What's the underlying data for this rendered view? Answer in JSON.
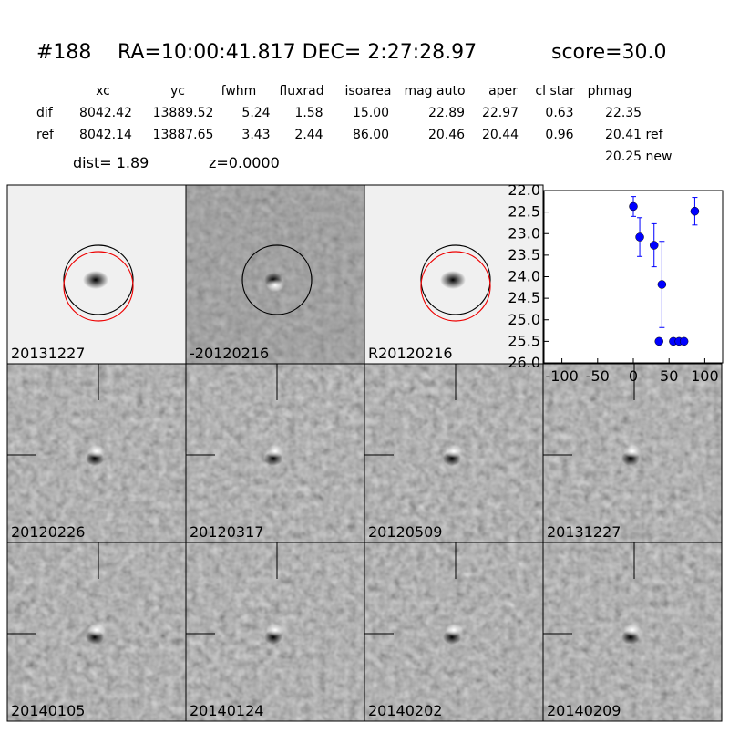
{
  "header": {
    "id": "#188",
    "coords": "RA=10:00:41.817 DEC= 2:27:28.97",
    "score": "score=30.0"
  },
  "table": {
    "columns": [
      "xc",
      "yc",
      "fwhm",
      "fluxrad",
      "isoarea",
      "mag auto",
      "aper",
      "cl star",
      "phmag"
    ],
    "rows": [
      [
        "dif",
        "8042.42",
        "13889.52",
        "5.24",
        "1.58",
        "15.00",
        "22.89",
        "22.97",
        "0.63",
        "22.35"
      ],
      [
        "ref",
        "8042.14",
        "13887.65",
        "3.43",
        "2.44",
        "86.00",
        "20.46",
        "20.44",
        "0.96",
        "20.41 ref"
      ]
    ],
    "extra": "20.25 new"
  },
  "info": {
    "dist": "dist=  1.89",
    "z": "z=0.0000"
  },
  "stamps": [
    {
      "label": "20131227",
      "color": "#000000"
    },
    {
      "label": "-20120216",
      "color": "#000000"
    },
    {
      "label": "R20120216",
      "color": "#000000"
    },
    {
      "label": "20120226",
      "color": "#000000"
    },
    {
      "label": "20120317",
      "color": "#000000"
    },
    {
      "label": "20120509",
      "color": "#000000"
    },
    {
      "label": "20131227",
      "color": "#ff0000"
    },
    {
      "label": "20140105",
      "color": "#000000"
    },
    {
      "label": "20140124",
      "color": "#000000"
    },
    {
      "label": "20140202",
      "color": "#000000"
    },
    {
      "label": "20140209",
      "color": "#000000"
    }
  ],
  "chart_data": {
    "type": "scatter",
    "x": [
      0,
      9,
      29,
      36,
      40,
      56,
      64,
      71,
      86
    ],
    "series": [
      {
        "color": "#0000ff",
        "values": [
          22.37,
          23.08,
          23.27,
          25.5,
          24.18,
          25.5,
          25.5,
          25.5,
          22.48
        ],
        "errors": [
          0.23,
          0.45,
          0.5,
          null,
          1.0,
          null,
          null,
          null,
          0.32
        ]
      }
    ],
    "xlim": [
      -125,
      125
    ],
    "ylim": [
      22,
      26
    ],
    "y_inverted": true,
    "xticks": [
      -100,
      -50,
      0,
      50,
      100
    ],
    "yticks": [
      {
        "value": 22,
        "label": "22.0"
      },
      22.5,
      {
        "value": 23,
        "label": "23.0"
      },
      23.5,
      {
        "value": 24,
        "label": "24.0"
      },
      24.5,
      {
        "value": 25,
        "label": "25.0"
      },
      25.5,
      {
        "value": 26,
        "label": "26.0"
      }
    ]
  }
}
